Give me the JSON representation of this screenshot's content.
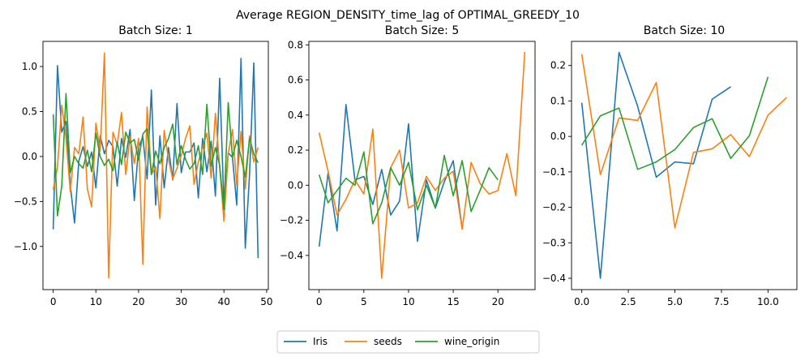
{
  "suptitle": "Average REGION_DENSITY_time_lag of OPTIMAL_GREEDY_10",
  "legend": {
    "entries": [
      {
        "name": "Iris",
        "color": "#1f77b4"
      },
      {
        "name": "seeds",
        "color": "#ff7f0e"
      },
      {
        "name": "wine_origin",
        "color": "#2ca02c"
      }
    ],
    "placement": "bottom-center"
  },
  "chart_data": [
    {
      "type": "line",
      "title": "Batch Size: 1",
      "xlabel": "",
      "ylabel": "",
      "xlim": [
        -2.4,
        50.4
      ],
      "ylim": [
        -1.48,
        1.28
      ],
      "xticks": [
        0,
        10,
        20,
        30,
        40,
        50
      ],
      "yticks": [
        -1.0,
        -0.5,
        0.0,
        0.5,
        1.0
      ],
      "xtick_labels": [
        "0",
        "10",
        "20",
        "30",
        "40",
        "50"
      ],
      "ytick_labels": [
        "−1.0",
        "−0.5",
        "0.0",
        "0.5",
        "1.0"
      ],
      "series": [
        {
          "name": "Iris",
          "color": "#1f77b4",
          "x": [
            0,
            1,
            2,
            3,
            4,
            5,
            6,
            7,
            8,
            9,
            10,
            11,
            12,
            13,
            14,
            15,
            16,
            17,
            18,
            19,
            20,
            21,
            22,
            23,
            24,
            25,
            26,
            27,
            28,
            29,
            30,
            31,
            32,
            33,
            34,
            35,
            36,
            37,
            38,
            39,
            40,
            41,
            42,
            43,
            44,
            45,
            46,
            47,
            48
          ],
          "y": [
            -0.81,
            1.01,
            0.27,
            0.39,
            -0.32,
            -0.74,
            -0.05,
            0.11,
            -0.11,
            0.05,
            -0.35,
            0.23,
            0.03,
            0.18,
            0.11,
            -0.33,
            0.2,
            -0.01,
            0.3,
            -0.49,
            0.1,
            0.22,
            -0.25,
            0.74,
            -0.54,
            0.23,
            -0.35,
            0.1,
            -0.26,
            0.59,
            -0.18,
            0.05,
            0.05,
            0.15,
            -0.46,
            0.2,
            -0.17,
            0.17,
            -0.44,
            0.87,
            -0.55,
            0.04,
            -0.01,
            -0.54,
            1.09,
            -1.02,
            -0.2,
            1.04,
            -1.13
          ]
        },
        {
          "name": "seeds",
          "color": "#ff7f0e",
          "x": [
            0,
            1,
            2,
            3,
            4,
            5,
            6,
            7,
            8,
            9,
            10,
            11,
            12,
            13,
            14,
            15,
            16,
            17,
            18,
            19,
            20,
            21,
            22,
            23,
            24,
            25,
            26,
            27,
            28,
            29,
            30,
            31,
            32,
            33,
            34,
            35,
            36,
            37,
            38,
            39,
            40,
            41,
            42,
            43,
            44,
            45,
            46,
            47,
            48
          ],
          "y": [
            -0.37,
            -0.12,
            0.57,
            0.2,
            -0.39,
            0.1,
            0.03,
            0.44,
            -0.36,
            -0.56,
            0.37,
            0.06,
            1.15,
            -1.35,
            0.27,
            0.13,
            0.49,
            -0.2,
            0.22,
            -0.08,
            0.2,
            -1.2,
            0.55,
            -0.2,
            -0.11,
            -0.69,
            0.29,
            -0.03,
            -0.25,
            -0.13,
            0.01,
            0.2,
            0.34,
            -0.31,
            -0.06,
            0.1,
            0.26,
            -0.24,
            0.48,
            -0.12,
            -0.72,
            0.03,
            0.3,
            -0.32,
            0.28,
            -0.36,
            0.23,
            -0.06,
            0.1
          ]
        },
        {
          "name": "wine_origin",
          "color": "#2ca02c",
          "x": [
            0,
            1,
            2,
            3,
            4,
            5,
            6,
            7,
            8,
            9,
            10,
            11,
            12,
            13,
            14,
            15,
            16,
            17,
            18,
            19,
            20,
            21,
            22,
            23,
            24,
            25,
            26,
            27,
            28,
            29,
            30,
            31,
            32,
            33,
            34,
            35,
            36,
            37,
            38,
            39,
            40,
            41,
            42,
            43,
            44,
            45,
            46,
            47,
            48
          ],
          "y": [
            0.47,
            -0.66,
            -0.33,
            0.7,
            -0.18,
            0.0,
            -0.08,
            -0.13,
            0.07,
            -0.17,
            0.26,
            0.0,
            -0.1,
            -0.03,
            -0.16,
            0.16,
            -0.09,
            0.27,
            0.15,
            0.19,
            -0.04,
            0.25,
            0.31,
            -0.2,
            0.06,
            -0.08,
            0.1,
            0.2,
            0.36,
            -0.09,
            0.12,
            -0.03,
            -0.14,
            -0.08,
            0.12,
            -0.2,
            0.58,
            -0.11,
            0.1,
            -0.1,
            -0.59,
            0.6,
            -0.01,
            0.18,
            0.0,
            -0.23,
            0.2,
            0.03,
            -0.07
          ]
        }
      ]
    },
    {
      "type": "line",
      "title": "Batch Size: 5",
      "xlabel": "",
      "ylabel": "",
      "xlim": [
        -1.15,
        24.15
      ],
      "ylim": [
        -0.595,
        0.82
      ],
      "xticks": [
        0,
        5,
        10,
        15,
        20
      ],
      "yticks": [
        -0.4,
        -0.2,
        0.0,
        0.2,
        0.4,
        0.6,
        0.8
      ],
      "xtick_labels": [
        "0",
        "5",
        "10",
        "15",
        "20"
      ],
      "ytick_labels": [
        "−0.4",
        "−0.2",
        "0.0",
        "0.2",
        "0.4",
        "0.6",
        "0.8"
      ],
      "series": [
        {
          "name": "Iris",
          "color": "#1f77b4",
          "x": [
            0,
            1,
            2,
            3,
            4,
            5,
            6,
            7,
            8,
            9,
            10,
            11,
            12,
            13,
            14,
            15,
            16
          ],
          "y": [
            -0.35,
            0.07,
            -0.26,
            0.46,
            0.03,
            0.05,
            -0.11,
            0.09,
            -0.17,
            -0.09,
            0.35,
            -0.32,
            0.03,
            -0.13,
            0.02,
            0.14,
            -0.25
          ]
        },
        {
          "name": "seeds",
          "color": "#ff7f0e",
          "x": [
            0,
            1,
            2,
            3,
            4,
            5,
            6,
            7,
            8,
            9,
            10,
            11,
            12,
            13,
            14,
            15,
            16,
            17,
            18,
            19,
            20,
            21,
            22,
            23
          ],
          "y": [
            0.3,
            0.08,
            -0.17,
            -0.08,
            0.03,
            -0.05,
            0.32,
            -0.53,
            0.1,
            0.2,
            -0.13,
            -0.1,
            0.05,
            -0.03,
            0.04,
            0.08,
            -0.25,
            0.13,
            0.01,
            -0.05,
            -0.03,
            0.18,
            -0.06,
            0.76
          ]
        },
        {
          "name": "wine_origin",
          "color": "#2ca02c",
          "x": [
            0,
            1,
            2,
            3,
            4,
            5,
            6,
            7,
            8,
            9,
            10,
            11,
            12,
            13,
            14,
            15,
            16,
            17,
            18,
            19,
            20
          ],
          "y": [
            0.06,
            -0.1,
            -0.03,
            0.04,
            0.0,
            0.19,
            -0.22,
            -0.1,
            0.1,
            0.0,
            0.13,
            -0.14,
            0.0,
            -0.13,
            0.17,
            -0.06,
            0.14,
            -0.15,
            -0.03,
            0.1,
            0.03
          ]
        }
      ]
    },
    {
      "type": "line",
      "title": "Batch Size: 10",
      "xlabel": "",
      "ylabel": "",
      "xlim": [
        -0.55,
        11.55
      ],
      "ylim": [
        -0.432,
        0.268
      ],
      "xticks": [
        0,
        2.5,
        5.0,
        7.5,
        10.0
      ],
      "yticks": [
        -0.4,
        -0.3,
        -0.2,
        -0.1,
        0.0,
        0.1,
        0.2
      ],
      "xtick_labels": [
        "0.0",
        "2.5",
        "5.0",
        "7.5",
        "10.0"
      ],
      "ytick_labels": [
        "−0.4",
        "−0.3",
        "−0.2",
        "−0.1",
        "0.0",
        "0.1",
        "0.2"
      ],
      "series": [
        {
          "name": "Iris",
          "color": "#1f77b4",
          "x": [
            0,
            1,
            2,
            3,
            4,
            5,
            6,
            7,
            8
          ],
          "y": [
            0.095,
            -0.4,
            0.237,
            0.085,
            -0.115,
            -0.072,
            -0.077,
            0.105,
            0.14
          ]
        },
        {
          "name": "seeds",
          "color": "#ff7f0e",
          "x": [
            0,
            1,
            2,
            3,
            4,
            5,
            6,
            7,
            8,
            9,
            10,
            11
          ],
          "y": [
            0.232,
            -0.108,
            0.052,
            0.045,
            0.152,
            -0.258,
            -0.045,
            -0.035,
            0.005,
            -0.057,
            0.06,
            0.11
          ]
        },
        {
          "name": "wine_origin",
          "color": "#2ca02c",
          "x": [
            0,
            1,
            2,
            3,
            4,
            5,
            6,
            7,
            8,
            9,
            10
          ],
          "y": [
            -0.025,
            0.058,
            0.08,
            -0.093,
            -0.072,
            -0.037,
            0.025,
            0.05,
            -0.062,
            0.002,
            0.168
          ]
        }
      ]
    }
  ]
}
